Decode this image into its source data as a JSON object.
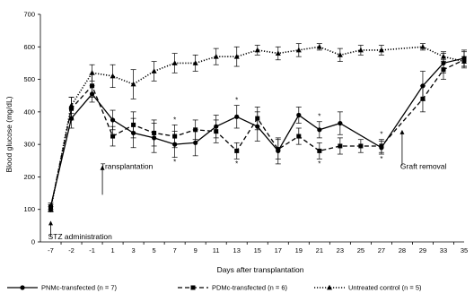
{
  "chart_data": {
    "type": "line",
    "title": "",
    "xlabel": "Days after transplantation",
    "ylabel": "Blood glucose (mg/dL)",
    "ylim": [
      0,
      700
    ],
    "yticks": [
      "0",
      "100",
      "200",
      "300",
      "400",
      "500",
      "600",
      "700"
    ],
    "categories": [
      "-7",
      "-2",
      "-1",
      "1",
      "3",
      "5",
      "7",
      "9",
      "11",
      "13",
      "15",
      "17",
      "19",
      "21",
      "23",
      "25",
      "27",
      "28",
      "29",
      "33",
      "35"
    ],
    "grid": false,
    "legend_position": "bottom",
    "series": [
      {
        "name": "PNMc-transfected  (n = 7)",
        "style": "solid",
        "marker": "circle",
        "color": "#000000",
        "values": [
          110,
          380,
          455,
          375,
          335,
          320,
          300,
          305,
          355,
          385,
          355,
          280,
          390,
          345,
          365,
          null,
          290,
          null,
          480,
          550,
          565
        ],
        "errors": [
          10,
          30,
          25,
          30,
          45,
          45,
          40,
          40,
          35,
          35,
          45,
          40,
          25,
          25,
          35,
          null,
          20,
          null,
          45,
          30,
          25
        ]
      },
      {
        "name": "PDMc-transfected (n = 6)",
        "style": "dashed",
        "marker": "square",
        "color": "#000000",
        "values": [
          105,
          410,
          480,
          325,
          360,
          335,
          325,
          345,
          340,
          280,
          380,
          285,
          325,
          280,
          295,
          295,
          295,
          null,
          440,
          530,
          560
        ],
        "errors": [
          10,
          35,
          35,
          30,
          40,
          40,
          35,
          30,
          35,
          25,
          35,
          30,
          25,
          25,
          25,
          20,
          20,
          null,
          40,
          30,
          25
        ]
      },
      {
        "name": "Untreated control (n = 5)",
        "style": "dotted",
        "marker": "triangle",
        "color": "#000000",
        "values": [
          100,
          420,
          520,
          510,
          485,
          525,
          550,
          550,
          570,
          570,
          590,
          580,
          590,
          600,
          575,
          590,
          590,
          null,
          600,
          570,
          555
        ],
        "errors": [
          8,
          25,
          25,
          35,
          45,
          30,
          30,
          25,
          25,
          30,
          15,
          20,
          20,
          10,
          20,
          15,
          15,
          null,
          10,
          15,
          15
        ]
      }
    ],
    "significance_marks": [
      {
        "x": "7",
        "text": "*"
      },
      {
        "x": "13",
        "text": "*"
      },
      {
        "x": "21",
        "text": "*"
      },
      {
        "x": "27",
        "text": "*"
      }
    ],
    "annotations": [
      {
        "text": "STZ administration",
        "x": "-7"
      },
      {
        "text": "Transplantation",
        "x": "1"
      },
      {
        "text": "Graft removal",
        "x": "28"
      }
    ]
  }
}
